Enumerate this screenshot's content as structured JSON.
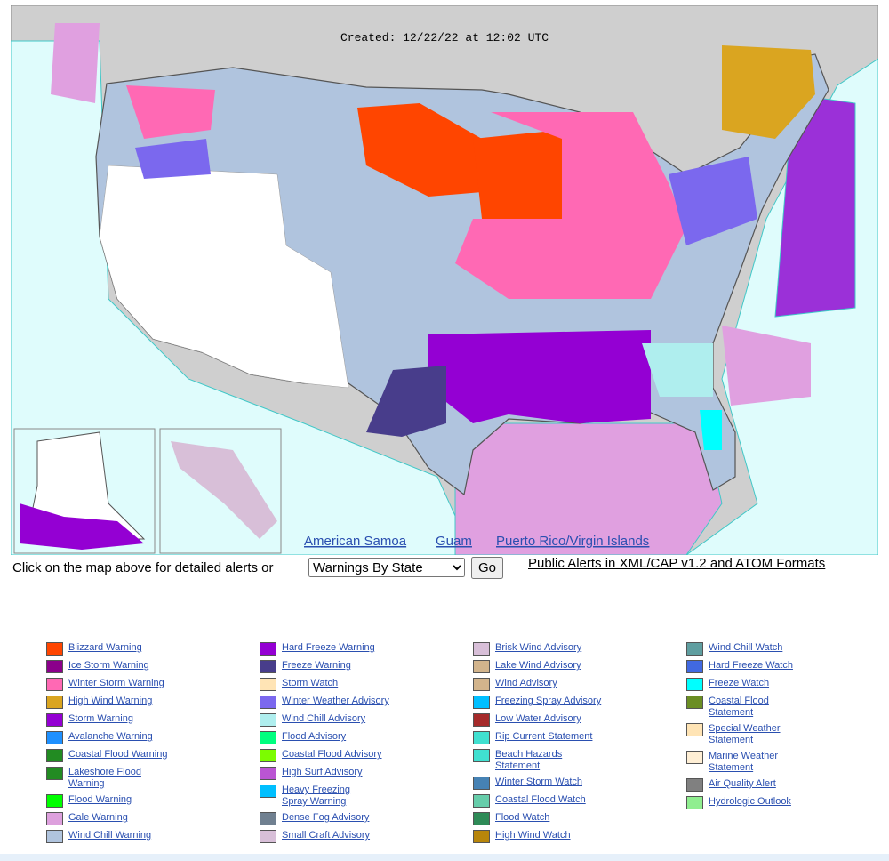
{
  "map": {
    "created": "Created: 12/22/22 at 12:02 UTC",
    "links": [
      "American Samoa",
      "Guam",
      "Puerto Rico/Virgin Islands"
    ]
  },
  "controls": {
    "prompt": "Click on the map above for detailed alerts or",
    "select": "Warnings By State",
    "button": "Go",
    "feed_link": "Public Alerts in XML/CAP v1.2 and ATOM Formats"
  },
  "legend": {
    "columns": [
      [
        {
          "label": "Blizzard Warning",
          "color": "#ff4500"
        },
        {
          "label": "Ice Storm Warning",
          "color": "#8b008b"
        },
        {
          "label": "Winter Storm Warning",
          "color": "#ff69b4"
        },
        {
          "label": "High Wind Warning",
          "color": "#daa520"
        },
        {
          "label": "Storm Warning",
          "color": "#9400d3"
        },
        {
          "label": "Avalanche Warning",
          "color": "#1e90ff"
        },
        {
          "label": "Coastal Flood Warning",
          "color": "#228b22"
        },
        {
          "label": "Lakeshore Flood Warning",
          "color": "#228b22"
        },
        {
          "label": "Flood Warning",
          "color": "#00ff00"
        },
        {
          "label": "Gale Warning",
          "color": "#dda0dd"
        },
        {
          "label": "Wind Chill Warning",
          "color": "#b0c4de"
        }
      ],
      [
        {
          "label": "Hard Freeze Warning",
          "color": "#9400d3"
        },
        {
          "label": "Freeze Warning",
          "color": "#483d8b"
        },
        {
          "label": "Storm Watch",
          "color": "#ffe4b5"
        },
        {
          "label": "Winter Weather Advisory",
          "color": "#7b68ee"
        },
        {
          "label": "Wind Chill Advisory",
          "color": "#afeeee"
        },
        {
          "label": "Flood Advisory",
          "color": "#00ff7f"
        },
        {
          "label": "Coastal Flood Advisory",
          "color": "#7cfc00"
        },
        {
          "label": "High Surf Advisory",
          "color": "#ba55d3"
        },
        {
          "label": "Heavy Freezing Spray Warning",
          "color": "#00bfff"
        },
        {
          "label": "Dense Fog Advisory",
          "color": "#708090"
        },
        {
          "label": "Small Craft Advisory",
          "color": "#d8bfd8"
        }
      ],
      [
        {
          "label": "Brisk Wind Advisory",
          "color": "#d8bfd8"
        },
        {
          "label": "Lake Wind Advisory",
          "color": "#d2b48c"
        },
        {
          "label": "Wind Advisory",
          "color": "#d2b48c"
        },
        {
          "label": "Freezing Spray Advisory",
          "color": "#00bfff"
        },
        {
          "label": "Low Water Advisory",
          "color": "#a52a2a"
        },
        {
          "label": "Rip Current Statement",
          "color": "#40e0d0"
        },
        {
          "label": "Beach Hazards Statement",
          "color": "#40e0d0"
        },
        {
          "label": "Winter Storm Watch",
          "color": "#4682b4"
        },
        {
          "label": "Coastal Flood Watch",
          "color": "#66cdaa"
        },
        {
          "label": "Flood Watch",
          "color": "#2e8b57"
        },
        {
          "label": "High Wind Watch",
          "color": "#b8860b"
        }
      ],
      [
        {
          "label": "Wind Chill Watch",
          "color": "#5f9ea0"
        },
        {
          "label": "Hard Freeze Watch",
          "color": "#4169e1"
        },
        {
          "label": "Freeze Watch",
          "color": "#00ffff"
        },
        {
          "label": "Coastal Flood Statement",
          "color": "#6b8e23"
        },
        {
          "label": "Special Weather Statement",
          "color": "#ffe4b5"
        },
        {
          "label": "Marine Weather Statement",
          "color": "#ffefd5"
        },
        {
          "label": "Air Quality Alert",
          "color": "#808080"
        },
        {
          "label": "Hydrologic Outlook",
          "color": "#90ee90"
        }
      ]
    ]
  }
}
